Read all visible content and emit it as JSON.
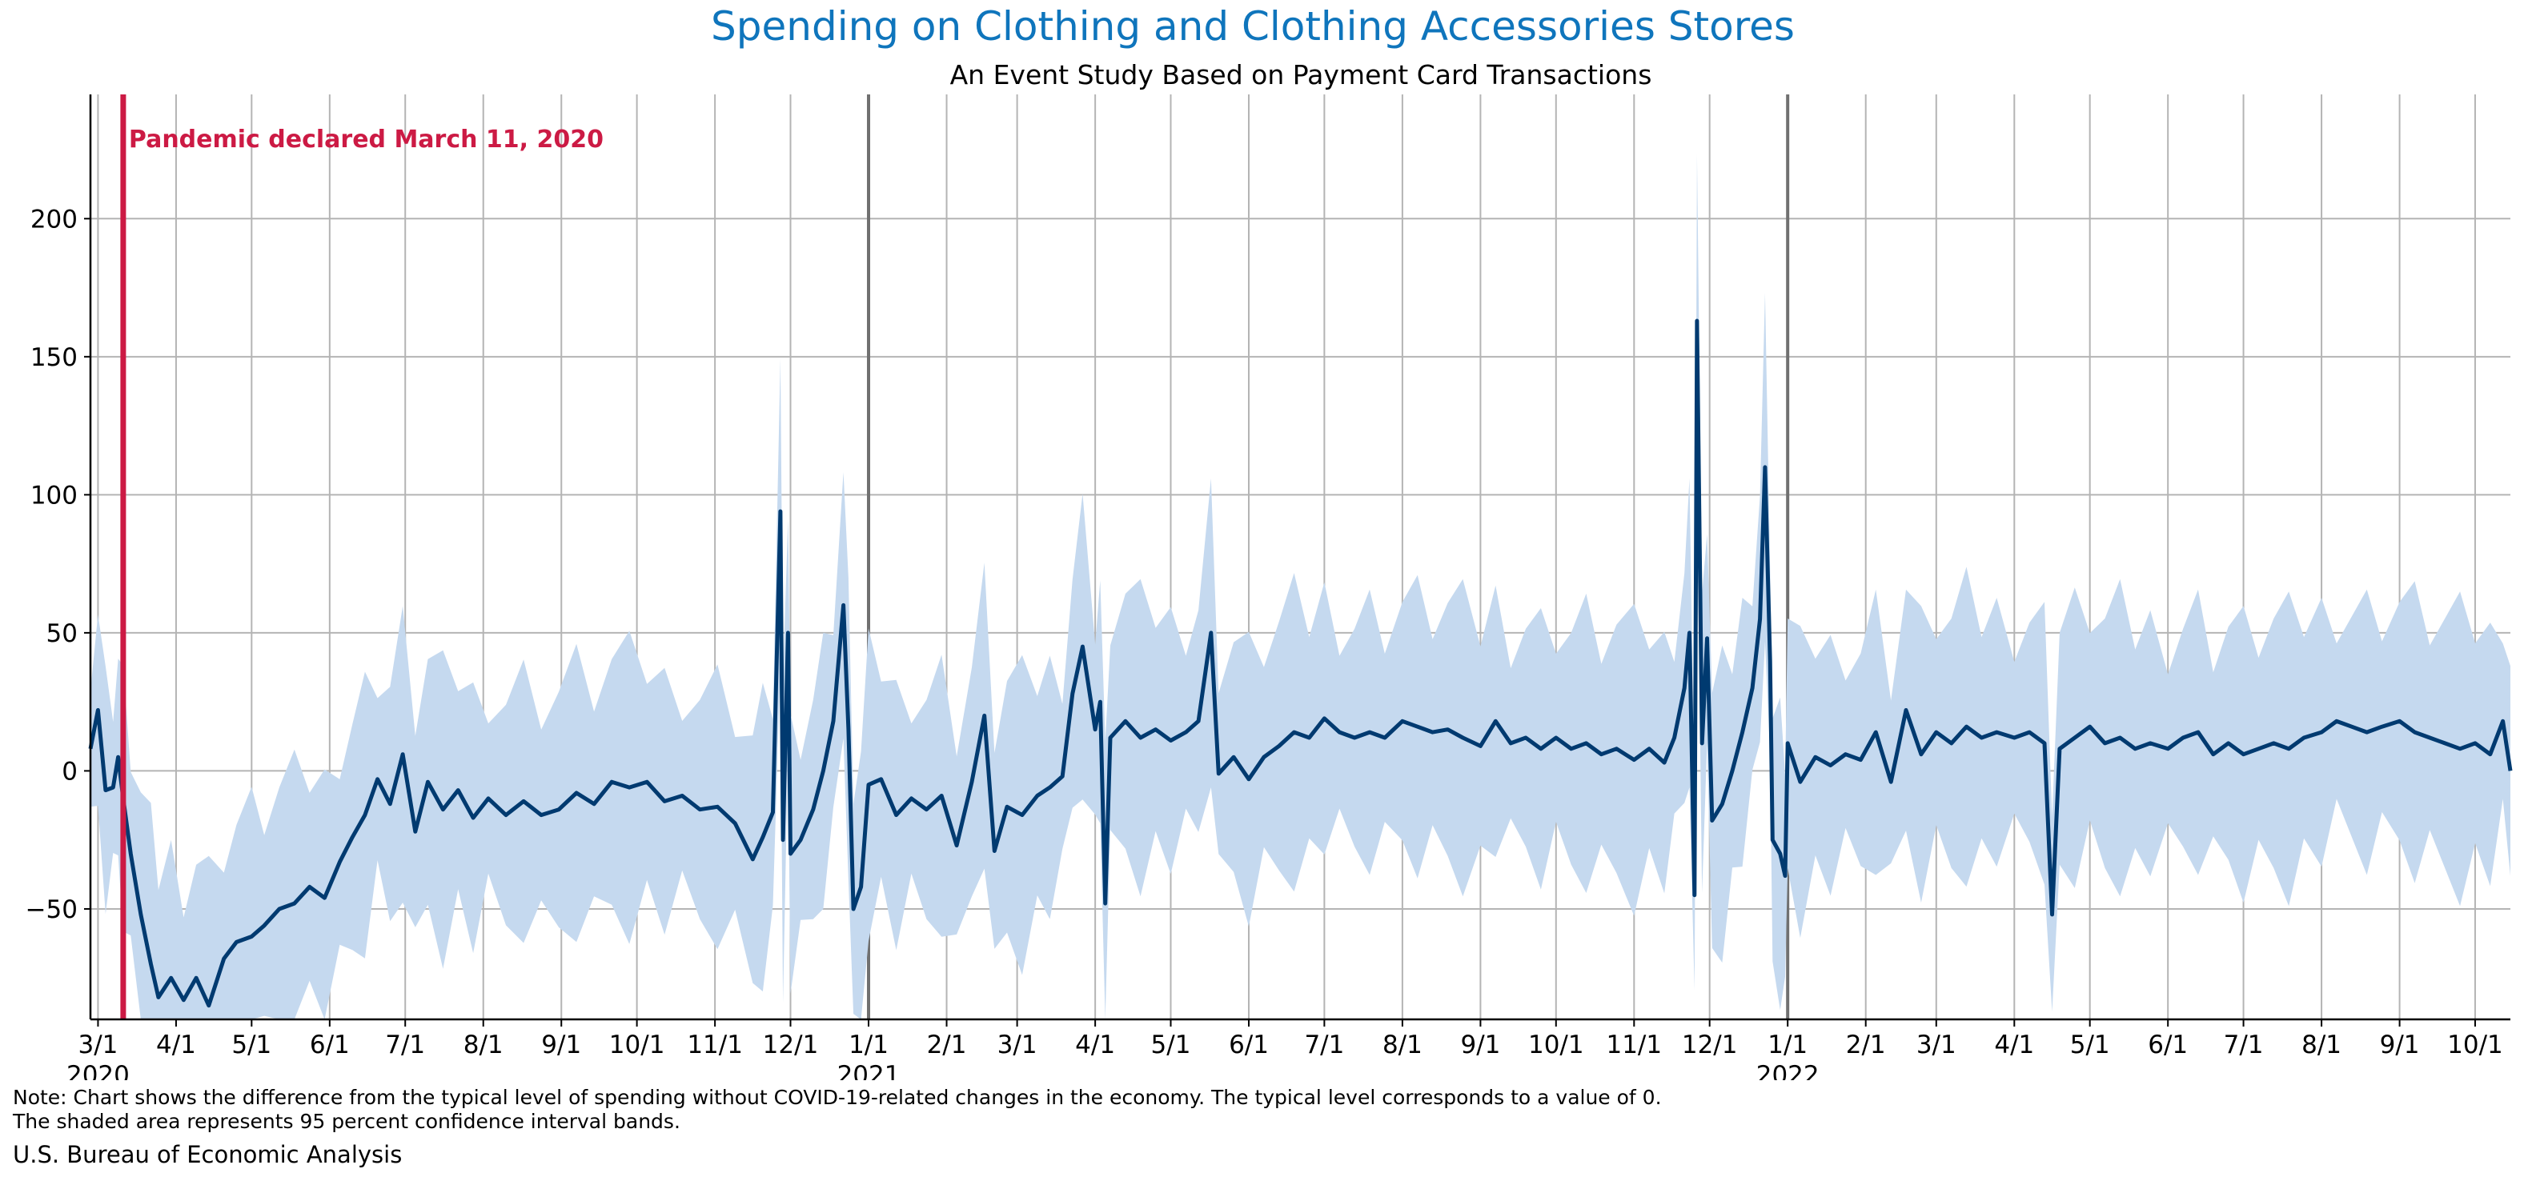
{
  "title": "Spending on Clothing and Clothing Accessories Stores",
  "subtitle": "An Event Study Based on Payment Card Transactions",
  "note_line1": "Note: Chart shows the difference from the typical level of spending without COVID-19-related changes in the economy. The typical level corresponds to a value of 0.",
  "note_line2": "The shaded area represents 95 percent confidence interval bands.",
  "source": "U.S. Bureau of Economic Analysis",
  "colors": {
    "title": "#0f75bc",
    "line": "#003a70",
    "band": "#c5d9ef",
    "event": "#cc1a44",
    "grid": "#b4b4b4",
    "year_line": "#707070"
  },
  "chart_data": {
    "type": "line",
    "title": "Spending on Clothing and Clothing Accessories Stores",
    "subtitle": "An Event Study Based on Payment Card Transactions",
    "xlabel": "",
    "ylabel": "",
    "x_range": [
      "2020-02-27",
      "2022-10-15"
    ],
    "ylim": [
      -90,
      245
    ],
    "y_ticks": [
      -50,
      0,
      50,
      100,
      150,
      200
    ],
    "grid": true,
    "confidence_band": "95 percent confidence interval",
    "x_ticks": [
      {
        "date": "2020-03-01",
        "label": "3/1",
        "year": "2020"
      },
      {
        "date": "2020-04-01",
        "label": "4/1"
      },
      {
        "date": "2020-05-01",
        "label": "5/1"
      },
      {
        "date": "2020-06-01",
        "label": "6/1"
      },
      {
        "date": "2020-07-01",
        "label": "7/1"
      },
      {
        "date": "2020-08-01",
        "label": "8/1"
      },
      {
        "date": "2020-09-01",
        "label": "9/1"
      },
      {
        "date": "2020-10-01",
        "label": "10/1"
      },
      {
        "date": "2020-11-01",
        "label": "11/1"
      },
      {
        "date": "2020-12-01",
        "label": "12/1"
      },
      {
        "date": "2021-01-01",
        "label": "1/1",
        "year": "2021"
      },
      {
        "date": "2021-02-01",
        "label": "2/1"
      },
      {
        "date": "2021-03-01",
        "label": "3/1"
      },
      {
        "date": "2021-04-01",
        "label": "4/1"
      },
      {
        "date": "2021-05-01",
        "label": "5/1"
      },
      {
        "date": "2021-06-01",
        "label": "6/1"
      },
      {
        "date": "2021-07-01",
        "label": "7/1"
      },
      {
        "date": "2021-08-01",
        "label": "8/1"
      },
      {
        "date": "2021-09-01",
        "label": "9/1"
      },
      {
        "date": "2021-10-01",
        "label": "10/1"
      },
      {
        "date": "2021-11-01",
        "label": "11/1"
      },
      {
        "date": "2021-12-01",
        "label": "12/1"
      },
      {
        "date": "2022-01-01",
        "label": "1/1",
        "year": "2022"
      },
      {
        "date": "2022-02-01",
        "label": "2/1"
      },
      {
        "date": "2022-03-01",
        "label": "3/1"
      },
      {
        "date": "2022-04-01",
        "label": "4/1"
      },
      {
        "date": "2022-05-01",
        "label": "5/1"
      },
      {
        "date": "2022-06-01",
        "label": "6/1"
      },
      {
        "date": "2022-07-01",
        "label": "7/1"
      },
      {
        "date": "2022-08-01",
        "label": "8/1"
      },
      {
        "date": "2022-09-01",
        "label": "9/1"
      },
      {
        "date": "2022-10-01",
        "label": "10/1"
      }
    ],
    "event": {
      "date": "2020-03-11",
      "label": "Pandemic declared March 11, 2020"
    },
    "series": [
      {
        "values": [
          [
            "2020-02-27",
            8
          ],
          [
            "2020-03-01",
            22
          ],
          [
            "2020-03-04",
            -7
          ],
          [
            "2020-03-07",
            -6
          ],
          [
            "2020-03-09",
            5
          ],
          [
            "2020-03-11",
            -10
          ],
          [
            "2020-03-14",
            -30
          ],
          [
            "2020-03-18",
            -52
          ],
          [
            "2020-03-22",
            -70
          ],
          [
            "2020-03-25",
            -82
          ],
          [
            "2020-03-30",
            -75
          ],
          [
            "2020-04-04",
            -83
          ],
          [
            "2020-04-09",
            -75
          ],
          [
            "2020-04-14",
            -85
          ],
          [
            "2020-04-20",
            -68
          ],
          [
            "2020-04-25",
            -62
          ],
          [
            "2020-05-01",
            -60
          ],
          [
            "2020-05-06",
            -56
          ],
          [
            "2020-05-12",
            -50
          ],
          [
            "2020-05-18",
            -48
          ],
          [
            "2020-05-24",
            -42
          ],
          [
            "2020-05-30",
            -46
          ],
          [
            "2020-06-05",
            -33
          ],
          [
            "2020-06-10",
            -24
          ],
          [
            "2020-06-15",
            -16
          ],
          [
            "2020-06-20",
            -3
          ],
          [
            "2020-06-25",
            -12
          ],
          [
            "2020-06-30",
            6
          ],
          [
            "2020-07-05",
            -22
          ],
          [
            "2020-07-10",
            -4
          ],
          [
            "2020-07-16",
            -14
          ],
          [
            "2020-07-22",
            -7
          ],
          [
            "2020-07-28",
            -17
          ],
          [
            "2020-08-03",
            -10
          ],
          [
            "2020-08-10",
            -16
          ],
          [
            "2020-08-17",
            -11
          ],
          [
            "2020-08-24",
            -16
          ],
          [
            "2020-08-31",
            -14
          ],
          [
            "2020-09-07",
            -8
          ],
          [
            "2020-09-14",
            -12
          ],
          [
            "2020-09-21",
            -4
          ],
          [
            "2020-09-28",
            -6
          ],
          [
            "2020-10-05",
            -4
          ],
          [
            "2020-10-12",
            -11
          ],
          [
            "2020-10-19",
            -9
          ],
          [
            "2020-10-26",
            -14
          ],
          [
            "2020-11-02",
            -13
          ],
          [
            "2020-11-09",
            -19
          ],
          [
            "2020-11-16",
            -32
          ],
          [
            "2020-11-20",
            -24
          ],
          [
            "2020-11-24",
            -15
          ],
          [
            "2020-11-27",
            94
          ],
          [
            "2020-11-28",
            -25
          ],
          [
            "2020-11-30",
            50
          ],
          [
            "2020-12-01",
            -30
          ],
          [
            "2020-12-05",
            -25
          ],
          [
            "2020-12-10",
            -14
          ],
          [
            "2020-12-14",
            0
          ],
          [
            "2020-12-18",
            18
          ],
          [
            "2020-12-22",
            60
          ],
          [
            "2020-12-24",
            15
          ],
          [
            "2020-12-26",
            -50
          ],
          [
            "2020-12-29",
            -42
          ],
          [
            "2021-01-01",
            -5
          ],
          [
            "2021-01-06",
            -3
          ],
          [
            "2021-01-12",
            -16
          ],
          [
            "2021-01-18",
            -10
          ],
          [
            "2021-01-24",
            -14
          ],
          [
            "2021-01-30",
            -9
          ],
          [
            "2021-02-05",
            -27
          ],
          [
            "2021-02-11",
            -4
          ],
          [
            "2021-02-16",
            20
          ],
          [
            "2021-02-20",
            -29
          ],
          [
            "2021-02-25",
            -13
          ],
          [
            "2021-03-03",
            -16
          ],
          [
            "2021-03-09",
            -9
          ],
          [
            "2021-03-14",
            -6
          ],
          [
            "2021-03-19",
            -2
          ],
          [
            "2021-03-23",
            28
          ],
          [
            "2021-03-27",
            45
          ],
          [
            "2021-04-01",
            15
          ],
          [
            "2021-04-03",
            25
          ],
          [
            "2021-04-05",
            -48
          ],
          [
            "2021-04-07",
            12
          ],
          [
            "2021-04-13",
            18
          ],
          [
            "2021-04-19",
            12
          ],
          [
            "2021-04-25",
            15
          ],
          [
            "2021-05-01",
            11
          ],
          [
            "2021-05-07",
            14
          ],
          [
            "2021-05-12",
            18
          ],
          [
            "2021-05-17",
            50
          ],
          [
            "2021-05-20",
            -1
          ],
          [
            "2021-05-26",
            5
          ],
          [
            "2021-06-01",
            -3
          ],
          [
            "2021-06-07",
            5
          ],
          [
            "2021-06-13",
            9
          ],
          [
            "2021-06-19",
            14
          ],
          [
            "2021-06-25",
            12
          ],
          [
            "2021-07-01",
            19
          ],
          [
            "2021-07-07",
            14
          ],
          [
            "2021-07-13",
            12
          ],
          [
            "2021-07-19",
            14
          ],
          [
            "2021-07-25",
            12
          ],
          [
            "2021-08-01",
            18
          ],
          [
            "2021-08-07",
            16
          ],
          [
            "2021-08-13",
            14
          ],
          [
            "2021-08-19",
            15
          ],
          [
            "2021-08-25",
            12
          ],
          [
            "2021-09-01",
            9
          ],
          [
            "2021-09-07",
            18
          ],
          [
            "2021-09-13",
            10
          ],
          [
            "2021-09-19",
            12
          ],
          [
            "2021-09-25",
            8
          ],
          [
            "2021-10-01",
            12
          ],
          [
            "2021-10-07",
            8
          ],
          [
            "2021-10-13",
            10
          ],
          [
            "2021-10-19",
            6
          ],
          [
            "2021-10-25",
            8
          ],
          [
            "2021-11-01",
            4
          ],
          [
            "2021-11-07",
            8
          ],
          [
            "2021-11-13",
            3
          ],
          [
            "2021-11-17",
            12
          ],
          [
            "2021-11-21",
            30
          ],
          [
            "2021-11-23",
            50
          ],
          [
            "2021-11-25",
            -45
          ],
          [
            "2021-11-26",
            163
          ],
          [
            "2021-11-28",
            10
          ],
          [
            "2021-11-30",
            48
          ],
          [
            "2021-12-02",
            -18
          ],
          [
            "2021-12-06",
            -12
          ],
          [
            "2021-12-10",
            0
          ],
          [
            "2021-12-14",
            14
          ],
          [
            "2021-12-18",
            30
          ],
          [
            "2021-12-21",
            55
          ],
          [
            "2021-12-23",
            110
          ],
          [
            "2021-12-25",
            40
          ],
          [
            "2021-12-26",
            -25
          ],
          [
            "2021-12-29",
            -30
          ],
          [
            "2021-12-31",
            -38
          ],
          [
            "2022-01-01",
            10
          ],
          [
            "2022-01-06",
            -4
          ],
          [
            "2022-01-12",
            5
          ],
          [
            "2022-01-18",
            2
          ],
          [
            "2022-01-24",
            6
          ],
          [
            "2022-01-30",
            4
          ],
          [
            "2022-02-05",
            14
          ],
          [
            "2022-02-11",
            -4
          ],
          [
            "2022-02-17",
            22
          ],
          [
            "2022-02-23",
            6
          ],
          [
            "2022-03-01",
            14
          ],
          [
            "2022-03-07",
            10
          ],
          [
            "2022-03-13",
            16
          ],
          [
            "2022-03-19",
            12
          ],
          [
            "2022-03-25",
            14
          ],
          [
            "2022-04-01",
            12
          ],
          [
            "2022-04-07",
            14
          ],
          [
            "2022-04-13",
            10
          ],
          [
            "2022-04-16",
            -52
          ],
          [
            "2022-04-19",
            8
          ],
          [
            "2022-04-25",
            12
          ],
          [
            "2022-05-01",
            16
          ],
          [
            "2022-05-07",
            10
          ],
          [
            "2022-05-13",
            12
          ],
          [
            "2022-05-19",
            8
          ],
          [
            "2022-05-25",
            10
          ],
          [
            "2022-06-01",
            8
          ],
          [
            "2022-06-07",
            12
          ],
          [
            "2022-06-13",
            14
          ],
          [
            "2022-06-19",
            6
          ],
          [
            "2022-06-25",
            10
          ],
          [
            "2022-07-01",
            6
          ],
          [
            "2022-07-07",
            8
          ],
          [
            "2022-07-13",
            10
          ],
          [
            "2022-07-19",
            8
          ],
          [
            "2022-07-25",
            12
          ],
          [
            "2022-08-01",
            14
          ],
          [
            "2022-08-07",
            18
          ],
          [
            "2022-08-13",
            16
          ],
          [
            "2022-08-19",
            14
          ],
          [
            "2022-08-25",
            16
          ],
          [
            "2022-09-01",
            18
          ],
          [
            "2022-09-07",
            14
          ],
          [
            "2022-09-13",
            12
          ],
          [
            "2022-09-19",
            10
          ],
          [
            "2022-09-25",
            8
          ],
          [
            "2022-10-01",
            10
          ],
          [
            "2022-10-07",
            6
          ],
          [
            "2022-10-12",
            18
          ],
          [
            "2022-10-15",
            0
          ]
        ]
      }
    ]
  }
}
